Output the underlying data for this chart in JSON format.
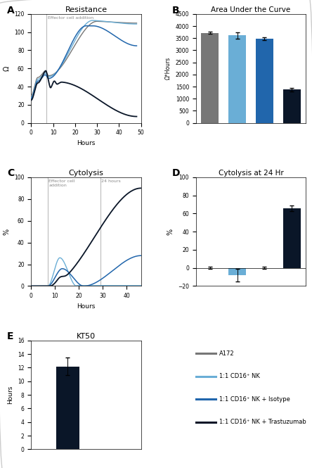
{
  "colors": {
    "A172": "#777777",
    "CD16_NK": "#6aaed6",
    "CD16_NK_iso": "#2166ac",
    "CD16_NK_trast": "#0a1628"
  },
  "panel_A": {
    "title": "Resistance",
    "xlabel": "Hours",
    "ylabel": "Ω",
    "xlim": [
      0,
      50
    ],
    "ylim": [
      0,
      120
    ],
    "yticks": [
      0,
      20,
      40,
      60,
      80,
      100,
      120
    ],
    "xticks": [
      0,
      10,
      20,
      30,
      40,
      50
    ],
    "vline": 7,
    "vline_label": "Effector cell addition"
  },
  "panel_B": {
    "title": "Area Under the Curve",
    "ylabel": "Ω*Hours",
    "ylim": [
      0,
      4500
    ],
    "yticks": [
      0,
      500,
      1000,
      1500,
      2000,
      2500,
      3000,
      3500,
      4000,
      4500
    ],
    "values": [
      3720,
      3620,
      3480,
      1380
    ],
    "errors": [
      40,
      130,
      55,
      75
    ],
    "bar_colors": [
      "#777777",
      "#6aaed6",
      "#2166ac",
      "#0a1628"
    ]
  },
  "panel_C": {
    "title": "Cytolysis",
    "xlabel": "Hours",
    "ylabel": "%",
    "xlim": [
      0,
      46
    ],
    "ylim": [
      0,
      100
    ],
    "yticks": [
      0,
      20,
      40,
      60,
      80,
      100
    ],
    "xticks": [
      0,
      10,
      20,
      30,
      40
    ],
    "vline1": 7,
    "vline2": 29,
    "vline1_label": "Effector cell\naddition",
    "vline2_label": "24 hours"
  },
  "panel_D": {
    "title": "Cytolysis at 24 Hr",
    "ylabel": "%",
    "ylim": [
      -20,
      100
    ],
    "yticks": [
      -20,
      0,
      20,
      40,
      60,
      80,
      100
    ],
    "values": [
      0,
      -8,
      0,
      66
    ],
    "errors": [
      1,
      7,
      1,
      3
    ],
    "bar_colors": [
      "#777777",
      "#6aaed6",
      "#2166ac",
      "#0a1628"
    ]
  },
  "panel_E": {
    "title": "KT50",
    "ylabel": "Hours",
    "ylim": [
      0,
      16
    ],
    "yticks": [
      0,
      2,
      4,
      6,
      8,
      10,
      12,
      14,
      16
    ],
    "value": 12.2,
    "error": 1.3,
    "bar_color": "#0a1628"
  },
  "legend": {
    "entries": [
      "A172",
      "1:1 CD16⁺ NK",
      "1:1 CD16⁺ NK + Isotype",
      "1:1 CD16⁺ NK + Trastuzumab"
    ],
    "colors": [
      "#777777",
      "#6aaed6",
      "#2166ac",
      "#0a1628"
    ]
  }
}
